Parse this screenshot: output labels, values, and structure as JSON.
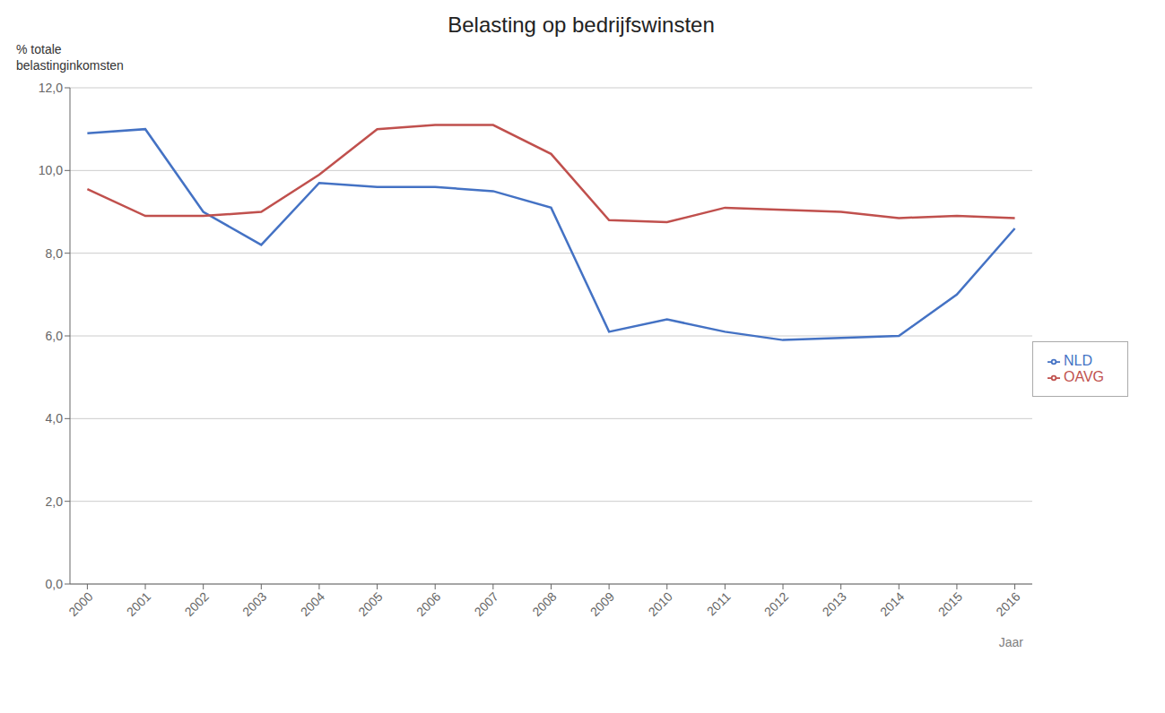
{
  "chart_data": {
    "type": "line",
    "title": "Belasting op bedrijfswinsten",
    "y_label": "% totale\nbelastinginkomsten",
    "x_label": "Jaar",
    "x": [
      2000,
      2001,
      2002,
      2003,
      2004,
      2005,
      2006,
      2007,
      2008,
      2009,
      2010,
      2011,
      2012,
      2013,
      2014,
      2015,
      2016
    ],
    "series": [
      {
        "name": "NLD",
        "color": "#4472C4",
        "values": [
          10.9,
          11.0,
          9.0,
          8.2,
          9.7,
          9.6,
          9.6,
          9.5,
          9.1,
          6.1,
          6.4,
          6.1,
          5.9,
          5.95,
          6.0,
          7.0,
          8.6
        ]
      },
      {
        "name": "OAVG",
        "color": "#C0504D",
        "values": [
          9.55,
          8.9,
          8.9,
          9.0,
          9.9,
          11.0,
          11.1,
          11.1,
          10.4,
          8.8,
          8.75,
          9.1,
          9.05,
          9.0,
          8.85,
          8.9,
          8.85
        ]
      }
    ],
    "xlim": [
      1999.7,
      2016.3
    ],
    "xticks": [
      2000,
      2001,
      2002,
      2003,
      2004,
      2005,
      2006,
      2007,
      2008,
      2009,
      2010,
      2011,
      2012,
      2013,
      2014,
      2015,
      2016
    ],
    "ylim": [
      0,
      12.0
    ],
    "yticks": [
      {
        "value": 0.0,
        "label": "0,0"
      },
      {
        "value": 2.0,
        "label": "2,0"
      },
      {
        "value": 4.0,
        "label": "4,0"
      },
      {
        "value": 6.0,
        "label": "6,0"
      },
      {
        "value": 8.0,
        "label": "8,0"
      },
      {
        "value": 10.0,
        "label": "10,0"
      },
      {
        "value": 12.0,
        "label": "12,0"
      }
    ],
    "grid": true,
    "legend": "right"
  }
}
